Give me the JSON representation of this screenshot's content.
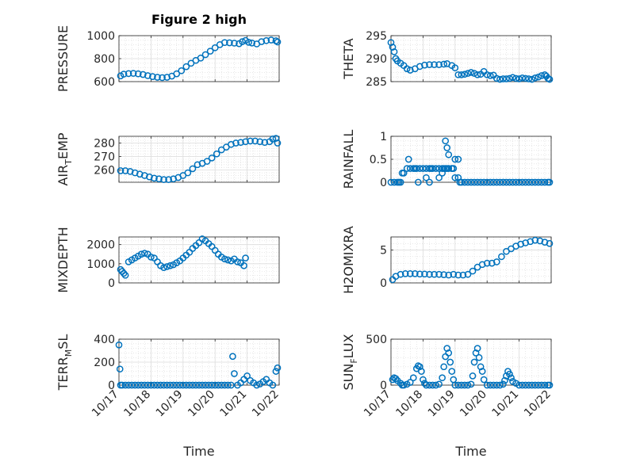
{
  "figure": {
    "title": "Figure 2 high",
    "marker_color": "#0072bd"
  },
  "x_axis": {
    "label": "Time",
    "tick_labels": [
      "10/17",
      "10/18",
      "10/19",
      "10/20",
      "10/21",
      "10/22"
    ]
  },
  "chart_data": [
    {
      "type": "scatter",
      "id": "pressure",
      "ylabel": "PRESSURE",
      "ylim": [
        600,
        1000
      ],
      "ytick_labels": [
        "600",
        "800",
        "1000"
      ],
      "xlim": [
        0,
        5
      ],
      "grid": true,
      "x": [
        0.05,
        0.15,
        0.3,
        0.45,
        0.6,
        0.75,
        0.9,
        1.05,
        1.2,
        1.35,
        1.5,
        1.65,
        1.8,
        1.95,
        2.1,
        2.25,
        2.4,
        2.55,
        2.7,
        2.85,
        3.0,
        3.15,
        3.3,
        3.45,
        3.6,
        3.75,
        3.85,
        3.95,
        4.05,
        4.15,
        4.3,
        4.45,
        4.6,
        4.75,
        4.9,
        4.95
      ],
      "values": [
        650,
        665,
        670,
        672,
        668,
        662,
        652,
        644,
        638,
        635,
        638,
        648,
        668,
        695,
        730,
        760,
        785,
        805,
        835,
        865,
        895,
        922,
        940,
        938,
        935,
        930,
        948,
        958,
        942,
        936,
        928,
        948,
        957,
        962,
        955,
        945
      ]
    },
    {
      "type": "scatter",
      "id": "theta",
      "ylabel": "THETA",
      "ylim": [
        285,
        295
      ],
      "ytick_labels": [
        "285",
        "290",
        "295"
      ],
      "xlim": [
        0,
        5
      ],
      "grid": true,
      "x": [
        0.0,
        0.05,
        0.1,
        0.15,
        0.2,
        0.3,
        0.4,
        0.5,
        0.6,
        0.75,
        0.9,
        1.05,
        1.2,
        1.35,
        1.5,
        1.65,
        1.75,
        1.9,
        2.0,
        2.1,
        2.2,
        2.3,
        2.4,
        2.5,
        2.6,
        2.7,
        2.8,
        2.9,
        3.0,
        3.1,
        3.2,
        3.3,
        3.4,
        3.5,
        3.6,
        3.7,
        3.8,
        3.9,
        4.0,
        4.1,
        4.2,
        4.3,
        4.4,
        4.5,
        4.6,
        4.7,
        4.8,
        4.85,
        4.9,
        4.95
      ],
      "values": [
        293.5,
        292.5,
        291.5,
        290.0,
        289.5,
        289.0,
        288.5,
        287.8,
        287.5,
        287.8,
        288.3,
        288.6,
        288.7,
        288.7,
        288.7,
        288.8,
        288.9,
        288.5,
        288.0,
        286.5,
        286.5,
        286.6,
        286.8,
        287.0,
        286.8,
        286.5,
        286.6,
        287.2,
        286.5,
        286.3,
        286.4,
        285.7,
        285.5,
        285.6,
        285.6,
        285.7,
        285.9,
        285.7,
        285.6,
        285.8,
        285.7,
        285.6,
        285.5,
        285.8,
        286.0,
        286.3,
        286.5,
        286.2,
        285.7,
        285.5
      ]
    },
    {
      "type": "scatter",
      "id": "air_temp",
      "ylabel": "AIR_TEMP",
      "ylim": [
        251,
        285
      ],
      "ytick_labels": [
        "260",
        "270",
        "280"
      ],
      "xlim": [
        0,
        5
      ],
      "grid": true,
      "x": [
        0.05,
        0.2,
        0.35,
        0.5,
        0.65,
        0.8,
        0.95,
        1.1,
        1.25,
        1.4,
        1.55,
        1.7,
        1.85,
        2.0,
        2.15,
        2.3,
        2.45,
        2.6,
        2.75,
        2.9,
        3.05,
        3.2,
        3.35,
        3.5,
        3.65,
        3.8,
        3.95,
        4.1,
        4.25,
        4.4,
        4.55,
        4.7,
        4.8,
        4.9,
        4.95
      ],
      "values": [
        259.5,
        259.5,
        259,
        258,
        257,
        256,
        255,
        254,
        253.5,
        253,
        253,
        253.5,
        254.5,
        256,
        258,
        261,
        264,
        265,
        266.5,
        269,
        272,
        275,
        277,
        279,
        280,
        280.5,
        281,
        281.5,
        281.5,
        281,
        280.5,
        281,
        283,
        283.5,
        280
      ]
    },
    {
      "type": "scatter",
      "id": "rainfall",
      "ylabel": "RAINFALL",
      "ylim": [
        0,
        1
      ],
      "ytick_labels": [
        "0",
        "0.5",
        "1"
      ],
      "xlim": [
        0,
        5
      ],
      "grid": true,
      "x": [
        0.0,
        0.1,
        0.2,
        0.25,
        0.3,
        0.35,
        0.4,
        0.5,
        0.55,
        0.6,
        0.7,
        0.75,
        0.8,
        0.9,
        1.0,
        1.1,
        1.2,
        1.25,
        1.3,
        1.4,
        1.5,
        1.6,
        1.7,
        1.75,
        1.8,
        1.9,
        1.95,
        2.0,
        2.1,
        2.15,
        2.2,
        2.3,
        2.4,
        2.5,
        2.6,
        2.7,
        2.8,
        2.9,
        3.0,
        3.1,
        3.2,
        3.3,
        3.4,
        3.5,
        3.6,
        3.7,
        3.8,
        3.9,
        4.0,
        4.1,
        4.2,
        4.3,
        4.4,
        4.5,
        4.6,
        4.7,
        4.8,
        4.9,
        4.95
      ],
      "values": [
        0,
        0,
        0,
        0,
        0,
        0.2,
        0.2,
        0.3,
        0.5,
        0.3,
        0.3,
        0.3,
        0.3,
        0.3,
        0.3,
        0.3,
        0.3,
        0.3,
        0.3,
        0.3,
        0.3,
        0.3,
        0.3,
        0.3,
        0.3,
        0.3,
        0.3,
        0.1,
        0.1,
        0,
        0,
        0,
        0,
        0,
        0,
        0,
        0,
        0,
        0,
        0,
        0,
        0,
        0,
        0,
        0,
        0,
        0,
        0,
        0,
        0,
        0,
        0,
        0,
        0,
        0,
        0,
        0,
        0,
        0
      ]
    },
    {
      "type": "scatter",
      "id": "rainfall_b",
      "ylabel": "",
      "ylim": [
        0,
        1
      ],
      "xlim": [
        0,
        5
      ],
      "x": [
        0.85,
        1.1,
        1.2,
        1.5,
        1.6,
        1.65,
        1.7,
        1.75,
        1.8,
        1.9,
        2.0,
        2.1
      ],
      "values": [
        0,
        0.1,
        0,
        0.1,
        0.2,
        0.3,
        0.9,
        0.75,
        0.6,
        0.3,
        0.5,
        0.5
      ]
    },
    {
      "type": "scatter",
      "id": "mixdepth",
      "ylabel": "MIXDEPTH",
      "ylim": [
        0,
        2400
      ],
      "ytick_labels": [
        "0",
        "1000",
        "2000"
      ],
      "xlim": [
        0,
        5
      ],
      "grid": true,
      "x": [
        0.05,
        0.1,
        0.15,
        0.2,
        0.3,
        0.4,
        0.5,
        0.6,
        0.7,
        0.8,
        0.9,
        1.0,
        1.1,
        1.2,
        1.3,
        1.4,
        1.5,
        1.6,
        1.7,
        1.8,
        1.9,
        2.0,
        2.1,
        2.2,
        2.3,
        2.4,
        2.5,
        2.6,
        2.7,
        2.8,
        2.9,
        3.0,
        3.1,
        3.2,
        3.3,
        3.4,
        3.5,
        3.6,
        3.7,
        3.8,
        3.9,
        3.95
      ],
      "values": [
        700,
        600,
        500,
        400,
        1100,
        1200,
        1300,
        1400,
        1500,
        1550,
        1500,
        1350,
        1300,
        1100,
        900,
        800,
        850,
        900,
        950,
        1050,
        1150,
        1300,
        1450,
        1600,
        1800,
        1950,
        2100,
        2300,
        2200,
        2050,
        1900,
        1700,
        1500,
        1350,
        1250,
        1200,
        1150,
        1250,
        1100,
        1050,
        900,
        1300
      ]
    },
    {
      "type": "scatter",
      "id": "h2omixra",
      "ylabel": "H2OMIXRA",
      "ylim": [
        0,
        7
      ],
      "ytick_labels": [
        "0",
        "5"
      ],
      "xlim": [
        0,
        5
      ],
      "grid": true,
      "x": [
        0.05,
        0.15,
        0.3,
        0.45,
        0.6,
        0.75,
        0.9,
        1.05,
        1.2,
        1.35,
        1.5,
        1.65,
        1.8,
        1.95,
        2.1,
        2.25,
        2.4,
        2.55,
        2.7,
        2.85,
        3.0,
        3.15,
        3.3,
        3.45,
        3.6,
        3.75,
        3.9,
        4.05,
        4.2,
        4.35,
        4.5,
        4.65,
        4.8,
        4.95
      ],
      "values": [
        0.5,
        1.0,
        1.3,
        1.4,
        1.4,
        1.4,
        1.35,
        1.35,
        1.3,
        1.3,
        1.3,
        1.25,
        1.2,
        1.3,
        1.2,
        1.2,
        1.3,
        1.8,
        2.4,
        2.8,
        3.0,
        3.0,
        3.2,
        4.0,
        4.8,
        5.2,
        5.6,
        5.9,
        6.1,
        6.3,
        6.5,
        6.4,
        6.2,
        6.0
      ]
    },
    {
      "type": "scatter",
      "id": "terr_msl",
      "ylabel": "TERR_MSL",
      "ylim": [
        0,
        400
      ],
      "ytick_labels": [
        "0",
        "200",
        "400"
      ],
      "xlim": [
        0,
        5
      ],
      "grid": true,
      "x": [
        0.0,
        0.03,
        0.05,
        0.1,
        0.2,
        0.3,
        0.4,
        0.5,
        0.6,
        0.7,
        0.8,
        0.9,
        1.0,
        1.1,
        1.2,
        1.3,
        1.4,
        1.5,
        1.6,
        1.7,
        1.8,
        1.9,
        2.0,
        2.1,
        2.2,
        2.3,
        2.4,
        2.5,
        2.6,
        2.7,
        2.8,
        2.9,
        3.0,
        3.1,
        3.2,
        3.3,
        3.4,
        3.5,
        3.55,
        3.6,
        3.7,
        3.8,
        3.9,
        4.0,
        4.1,
        4.2,
        4.3,
        4.4,
        4.5,
        4.6,
        4.7,
        4.8,
        4.9,
        4.95
      ],
      "values": [
        350,
        140,
        0,
        0,
        0,
        0,
        0,
        0,
        0,
        0,
        0,
        0,
        0,
        0,
        0,
        0,
        0,
        0,
        0,
        0,
        0,
        0,
        0,
        0,
        0,
        0,
        0,
        0,
        0,
        0,
        0,
        0,
        0,
        0,
        0,
        0,
        0,
        0,
        250,
        100,
        0,
        20,
        50,
        80,
        40,
        20,
        0,
        10,
        30,
        50,
        20,
        0,
        120,
        150
      ]
    },
    {
      "type": "scatter",
      "id": "sun_flux",
      "ylabel": "SUN_FLUX",
      "ylim": [
        0,
        500
      ],
      "ytick_labels": [
        "0",
        "500"
      ],
      "xlim": [
        0,
        5
      ],
      "grid": true,
      "x": [
        0.05,
        0.1,
        0.15,
        0.2,
        0.3,
        0.35,
        0.4,
        0.5,
        0.6,
        0.7,
        0.8,
        0.85,
        0.9,
        0.95,
        1.0,
        1.05,
        1.1,
        1.2,
        1.3,
        1.4,
        1.5,
        1.6,
        1.65,
        1.7,
        1.75,
        1.8,
        1.85,
        1.9,
        1.95,
        2.0,
        2.1,
        2.2,
        2.3,
        2.4,
        2.5,
        2.55,
        2.6,
        2.65,
        2.7,
        2.75,
        2.8,
        2.85,
        2.9,
        3.0,
        3.1,
        3.2,
        3.3,
        3.4,
        3.5,
        3.55,
        3.6,
        3.65,
        3.7,
        3.75,
        3.8,
        3.9,
        4.0,
        4.1,
        4.2,
        4.3,
        4.4,
        4.5,
        4.6,
        4.7,
        4.8,
        4.9,
        4.95
      ],
      "values": [
        60,
        80,
        70,
        50,
        20,
        0,
        0,
        10,
        30,
        80,
        180,
        210,
        200,
        150,
        60,
        20,
        0,
        0,
        0,
        0,
        10,
        80,
        200,
        310,
        400,
        350,
        250,
        150,
        60,
        0,
        0,
        0,
        0,
        0,
        10,
        100,
        250,
        350,
        400,
        300,
        200,
        150,
        60,
        0,
        0,
        0,
        0,
        0,
        10,
        50,
        100,
        150,
        120,
        80,
        40,
        20,
        0,
        0,
        0,
        0,
        0,
        0,
        0,
        0,
        0,
        0,
        0
      ]
    }
  ]
}
